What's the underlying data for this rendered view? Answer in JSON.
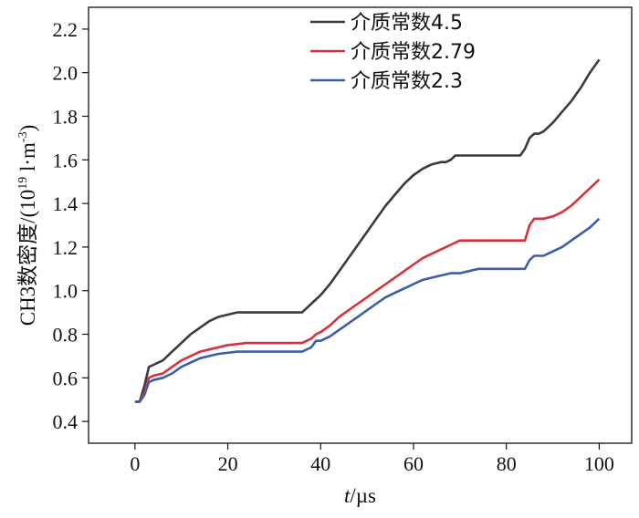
{
  "chart_data": {
    "type": "line",
    "xlabel": {
      "italic": "t",
      "rest": "/µs"
    },
    "ylabel": {
      "base": "CH3数密度/(10",
      "exp": "19",
      "mid": " l·m",
      "exp2": "-3",
      "end": ")"
    },
    "xlim": [
      -10,
      107
    ],
    "ylim": [
      0.3,
      2.3
    ],
    "xticks": [
      0,
      20,
      40,
      60,
      80,
      100
    ],
    "yticks": [
      0.4,
      0.6,
      0.8,
      1.0,
      1.2,
      1.4,
      1.6,
      1.8,
      2.0,
      2.2
    ],
    "ytick_labels": [
      "0.4",
      "0.6",
      "0.8",
      "1.0",
      "1.2",
      "1.4",
      "1.6",
      "1.8",
      "2.0",
      "2.2"
    ],
    "xtick_labels": [
      "0",
      "20",
      "40",
      "60",
      "80",
      "100"
    ],
    "legend_position": "top-right",
    "series": [
      {
        "name": "介质常数4.5",
        "color": "#3d3a3b",
        "x": [
          0,
          1,
          2,
          3,
          4,
          6,
          8,
          10,
          12,
          14,
          16,
          18,
          20,
          22,
          24,
          26,
          28,
          30,
          32,
          34,
          35,
          36,
          37,
          38,
          40,
          42,
          44,
          46,
          48,
          50,
          52,
          54,
          56,
          58,
          60,
          62,
          64,
          66,
          67,
          68,
          69,
          70,
          72,
          74,
          76,
          78,
          80,
          82,
          83,
          84,
          85,
          86,
          87,
          88,
          90,
          92,
          94,
          96,
          98,
          100
        ],
        "y": [
          0.49,
          0.49,
          0.56,
          0.65,
          0.66,
          0.68,
          0.72,
          0.76,
          0.8,
          0.83,
          0.86,
          0.88,
          0.89,
          0.9,
          0.9,
          0.9,
          0.9,
          0.9,
          0.9,
          0.9,
          0.9,
          0.9,
          0.92,
          0.94,
          0.98,
          1.03,
          1.09,
          1.15,
          1.21,
          1.27,
          1.33,
          1.39,
          1.44,
          1.49,
          1.53,
          1.56,
          1.58,
          1.59,
          1.59,
          1.6,
          1.62,
          1.62,
          1.62,
          1.62,
          1.62,
          1.62,
          1.62,
          1.62,
          1.62,
          1.65,
          1.7,
          1.72,
          1.72,
          1.73,
          1.77,
          1.82,
          1.87,
          1.93,
          2.0,
          2.06
        ]
      },
      {
        "name": "介质常数2.79",
        "color": "#d7313e",
        "x": [
          0,
          1,
          2,
          3,
          4,
          6,
          8,
          10,
          12,
          14,
          16,
          18,
          20,
          22,
          24,
          26,
          28,
          30,
          32,
          34,
          36,
          37,
          38,
          39,
          40,
          42,
          44,
          46,
          48,
          50,
          52,
          54,
          56,
          58,
          60,
          62,
          64,
          66,
          68,
          69,
          70,
          72,
          74,
          76,
          78,
          80,
          82,
          84,
          85,
          86,
          87,
          88,
          90,
          92,
          94,
          96,
          98,
          100
        ],
        "y": [
          0.49,
          0.49,
          0.53,
          0.6,
          0.61,
          0.62,
          0.65,
          0.68,
          0.7,
          0.72,
          0.73,
          0.74,
          0.75,
          0.755,
          0.76,
          0.76,
          0.76,
          0.76,
          0.76,
          0.76,
          0.76,
          0.77,
          0.78,
          0.8,
          0.81,
          0.84,
          0.88,
          0.91,
          0.94,
          0.97,
          1.0,
          1.03,
          1.06,
          1.09,
          1.12,
          1.15,
          1.17,
          1.19,
          1.21,
          1.22,
          1.23,
          1.23,
          1.23,
          1.23,
          1.23,
          1.23,
          1.23,
          1.23,
          1.3,
          1.33,
          1.33,
          1.33,
          1.34,
          1.36,
          1.39,
          1.43,
          1.47,
          1.51
        ]
      },
      {
        "name": "介质常数2.3",
        "color": "#3c5ea8",
        "x": [
          0,
          1,
          2,
          3,
          4,
          6,
          8,
          10,
          12,
          14,
          16,
          18,
          20,
          22,
          24,
          26,
          28,
          30,
          32,
          34,
          36,
          37,
          38,
          39,
          40,
          42,
          44,
          46,
          48,
          50,
          52,
          54,
          56,
          58,
          60,
          62,
          64,
          66,
          68,
          70,
          72,
          74,
          76,
          78,
          80,
          82,
          84,
          85,
          86,
          87,
          88,
          90,
          92,
          94,
          96,
          98,
          100
        ],
        "y": [
          0.49,
          0.49,
          0.52,
          0.58,
          0.59,
          0.6,
          0.62,
          0.65,
          0.67,
          0.69,
          0.7,
          0.71,
          0.715,
          0.72,
          0.72,
          0.72,
          0.72,
          0.72,
          0.72,
          0.72,
          0.72,
          0.73,
          0.74,
          0.77,
          0.77,
          0.79,
          0.82,
          0.85,
          0.88,
          0.91,
          0.94,
          0.97,
          0.99,
          1.01,
          1.03,
          1.05,
          1.06,
          1.07,
          1.08,
          1.08,
          1.09,
          1.1,
          1.1,
          1.1,
          1.1,
          1.1,
          1.1,
          1.14,
          1.16,
          1.16,
          1.16,
          1.18,
          1.2,
          1.23,
          1.26,
          1.29,
          1.33
        ]
      }
    ]
  }
}
